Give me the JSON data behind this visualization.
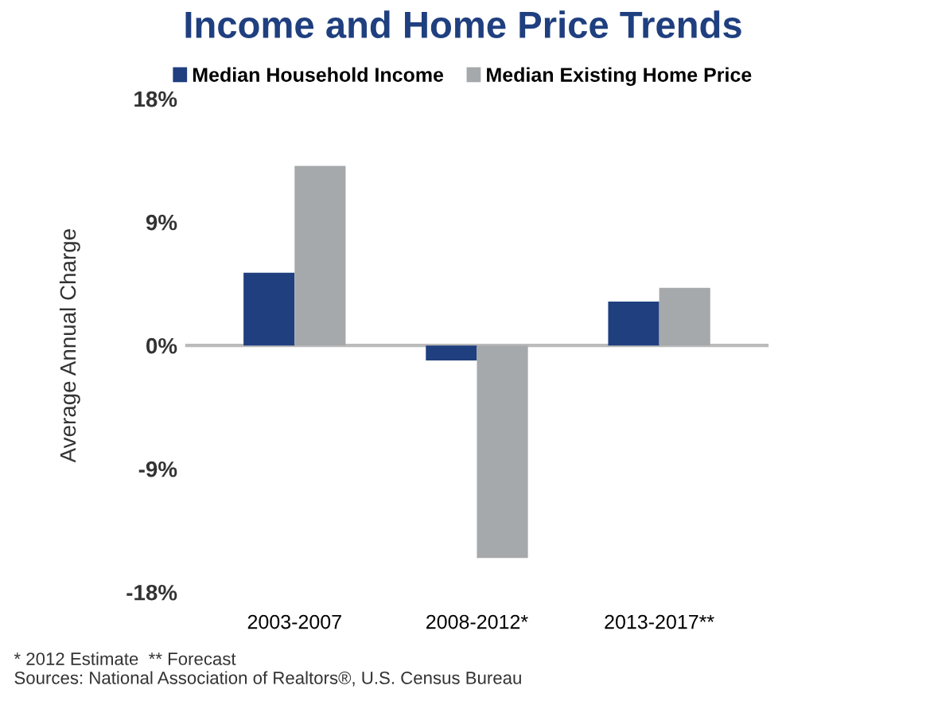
{
  "chart_data": {
    "type": "bar",
    "title": "Income and Home Price Trends",
    "ylabel": "Average Annual Charge",
    "categories": [
      "2003-2007",
      "2008-2012*",
      "2013-2017**"
    ],
    "series": [
      {
        "name": "Median Household Income",
        "color": "#1f3f7f",
        "values": [
          5.3,
          -1.1,
          3.2
        ]
      },
      {
        "name": "Median Existing Home Price",
        "color": "#a6a9ac",
        "values": [
          13.1,
          -15.5,
          4.2
        ]
      }
    ],
    "ylim": [
      -18,
      18
    ],
    "yticks": [
      {
        "value": -18,
        "label": "-18%"
      },
      {
        "value": -9,
        "label": "-9%"
      },
      {
        "value": 0,
        "label": "0%"
      },
      {
        "value": 9,
        "label": "9%"
      },
      {
        "value": 18,
        "label": "18%"
      }
    ],
    "ref_lines": [
      {
        "axis": "y",
        "value": 0,
        "color": "#bbbbbb"
      }
    ],
    "grid": false,
    "legend": "top",
    "annotations": [
      "* 2012 Estimate  ** Forecast",
      "Sources: National Association of Realtors®, U.S. Census Bureau"
    ]
  }
}
